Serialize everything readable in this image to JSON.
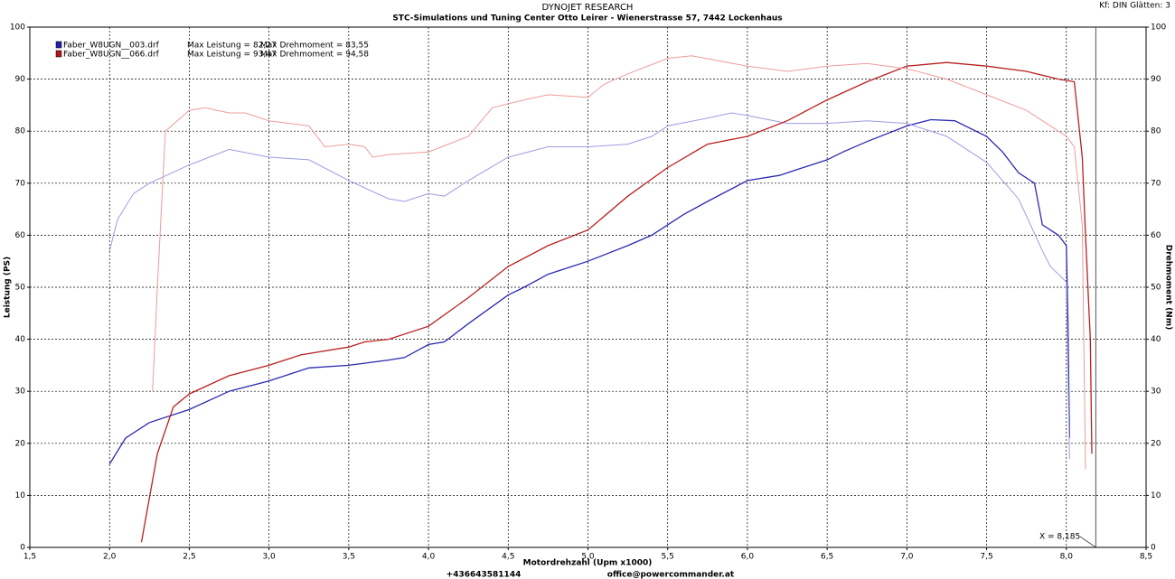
{
  "chart_data": {
    "type": "line",
    "title": "DYNOJET RESEARCH",
    "subtitle": "STC-Simulations und Tuning Center Otto Leirer - Wienerstrasse 57, 7442 Lockenhaus",
    "settings_text": "Kf: DIN  Glätten: 3",
    "x_label": "Motordrehzahl (Upm x1000)",
    "y_label": "Leistung (PS)",
    "y2_label": "Drehmoment (Nm)",
    "footer": [
      "+436643581144",
      "office@powercommander.at"
    ],
    "cursor": {
      "value": 8.185,
      "label": "X = 8,185"
    },
    "grid": true,
    "xlim": [
      1.5,
      8.5
    ],
    "xticks": [
      {
        "value": 1.5,
        "label": "1,5"
      },
      {
        "value": 2.0,
        "label": "2,0"
      },
      {
        "value": 2.5,
        "label": "2,5"
      },
      {
        "value": 3.0,
        "label": "3,0"
      },
      {
        "value": 3.5,
        "label": "3,5"
      },
      {
        "value": 4.0,
        "label": "4,0"
      },
      {
        "value": 4.5,
        "label": "4,5"
      },
      {
        "value": 5.0,
        "label": "5,0"
      },
      {
        "value": 5.5,
        "label": "5,5"
      },
      {
        "value": 6.0,
        "label": "6,0"
      },
      {
        "value": 6.5,
        "label": "6,5"
      },
      {
        "value": 7.0,
        "label": "7,0"
      },
      {
        "value": 7.5,
        "label": "7,5"
      },
      {
        "value": 8.0,
        "label": "8,0"
      },
      {
        "value": 8.5,
        "label": "8,5"
      }
    ],
    "ylim": [
      0,
      100
    ],
    "yticks": [
      0,
      10,
      20,
      30,
      40,
      50,
      60,
      70,
      80,
      90,
      100
    ],
    "y2lim": [
      0,
      100
    ],
    "y2ticks": [
      0,
      10,
      20,
      30,
      40,
      50,
      60,
      70,
      80,
      90,
      100
    ],
    "legend": [
      {
        "file": "Faber_W8UGN__003.drf",
        "power": "Max Leistung = 82,27",
        "torque": "Max Drehmoment = 83,55",
        "color": "#1f1fa8"
      },
      {
        "file": "Faber_W8UGN__066.drf",
        "power": "Max Leistung = 93,47",
        "torque": "Max Drehmoment = 94,58",
        "color": "#b01818"
      }
    ],
    "series": [
      {
        "color": "#2a2ab0",
        "axis": "y",
        "x": [
          2.0,
          2.1,
          2.25,
          2.5,
          2.75,
          3.0,
          3.25,
          3.5,
          3.75,
          3.85,
          4.0,
          4.1,
          4.25,
          4.5,
          4.6,
          4.75,
          5.0,
          5.25,
          5.4,
          5.6,
          5.75,
          6.0,
          6.2,
          6.3,
          6.5,
          6.6,
          6.75,
          7.0,
          7.15,
          7.3,
          7.5,
          7.6,
          7.7,
          7.8,
          7.85,
          7.95,
          8.0,
          8.01,
          8.02
        ],
        "values": [
          16,
          21,
          24,
          26.5,
          30,
          32,
          34.5,
          35,
          36,
          36.5,
          39,
          39.5,
          43,
          48.5,
          50,
          52.5,
          55,
          58,
          60,
          64,
          66.5,
          70.5,
          71.5,
          72.5,
          74.5,
          76,
          78,
          81,
          82.2,
          82,
          79,
          76,
          72,
          70,
          62,
          60,
          58,
          44,
          21
        ]
      },
      {
        "color": "#9c9ce4",
        "axis": "y2",
        "x": [
          2.0,
          2.05,
          2.15,
          2.25,
          2.5,
          2.75,
          3.0,
          3.25,
          3.5,
          3.75,
          3.85,
          4.0,
          4.1,
          4.25,
          4.5,
          4.75,
          5.0,
          5.25,
          5.4,
          5.5,
          5.75,
          5.9,
          6.0,
          6.25,
          6.5,
          6.75,
          7.0,
          7.25,
          7.5,
          7.7,
          7.85,
          7.9,
          8.0,
          8.02
        ],
        "values": [
          57,
          63,
          68,
          70,
          73.5,
          76.5,
          75,
          74.5,
          70.5,
          67,
          66.5,
          68,
          67.5,
          70.5,
          75,
          77,
          77,
          77.5,
          79,
          81,
          82.5,
          83.5,
          83,
          81.5,
          81.5,
          82,
          81.5,
          79,
          74,
          67,
          57,
          54,
          51,
          17
        ]
      },
      {
        "color": "#b82020",
        "axis": "y",
        "x": [
          2.2,
          2.3,
          2.4,
          2.5,
          2.75,
          3.0,
          3.2,
          3.5,
          3.6,
          3.75,
          4.0,
          4.25,
          4.5,
          4.75,
          5.0,
          5.25,
          5.5,
          5.75,
          6.0,
          6.25,
          6.5,
          6.75,
          7.0,
          7.25,
          7.5,
          7.75,
          7.95,
          8.05,
          8.1,
          8.12,
          8.15,
          8.16
        ],
        "values": [
          1,
          18,
          27,
          29.5,
          33,
          35,
          37,
          38.5,
          39.5,
          40,
          42.5,
          48,
          54,
          58,
          61,
          67.5,
          73,
          77.5,
          79,
          82,
          86,
          89.5,
          92.5,
          93.2,
          92.5,
          91.5,
          90,
          89.5,
          75,
          60,
          40,
          18
        ]
      },
      {
        "color": "#ec9c9c",
        "axis": "y2",
        "x": [
          2.27,
          2.3,
          2.35,
          2.5,
          2.6,
          2.75,
          2.85,
          3.0,
          3.25,
          3.35,
          3.5,
          3.6,
          3.65,
          3.75,
          4.0,
          4.25,
          4.4,
          4.6,
          4.75,
          5.0,
          5.1,
          5.25,
          5.5,
          5.65,
          6.0,
          6.25,
          6.5,
          6.75,
          7.0,
          7.25,
          7.5,
          7.75,
          8.0,
          8.05,
          8.1,
          8.12
        ],
        "values": [
          30,
          50,
          80,
          84,
          84.5,
          83.5,
          83.5,
          82,
          81,
          77,
          77.5,
          77,
          75,
          75.5,
          76,
          79,
          84.5,
          86,
          87,
          86.5,
          89,
          91,
          94,
          94.5,
          92.5,
          91.5,
          92.5,
          93,
          92,
          90,
          87,
          84,
          79,
          77,
          62,
          15
        ]
      }
    ]
  }
}
